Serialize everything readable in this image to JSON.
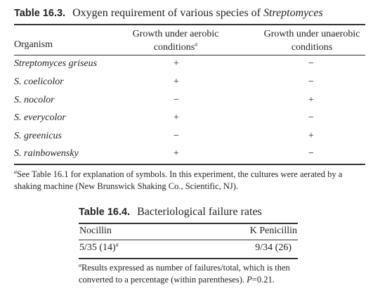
{
  "table1": {
    "number": "Table 16.3.",
    "title_prefix": "Oxygen requirement of various species of ",
    "title_italic": "Streptomyces",
    "headers": {
      "organism": "Organism",
      "aerobic_line1": "Growth under aerobic",
      "aerobic_line2": "conditions",
      "aerobic_mark": "a",
      "anaerobic_line1": "Growth under unaerobic",
      "anaerobic_line2": "conditions"
    },
    "rows": [
      {
        "organism": "Streptomyces griseus",
        "aerobic": "+",
        "anaerobic": "−"
      },
      {
        "organism": "S. coelicolor",
        "aerobic": "+",
        "anaerobic": "−"
      },
      {
        "organism": "S. nocolor",
        "aerobic": "−",
        "anaerobic": "+"
      },
      {
        "organism": "S. everycolor",
        "aerobic": "+",
        "anaerobic": "−"
      },
      {
        "organism": "S. greenicus",
        "aerobic": "−",
        "anaerobic": "+"
      },
      {
        "organism": "S. rainbowensky",
        "aerobic": "+",
        "anaerobic": "−"
      }
    ],
    "footnote_mark": "a",
    "footnote_text": "See Table 16.1 for explanation of symbols. In this experiment, the cultures were aerated by a shaking machine (New Brunswick Shaking Co., Scientific, NJ)."
  },
  "table2": {
    "number": "Table 16.4.",
    "title": "Bacteriological failure rates",
    "headers": {
      "col1": "Nocillin",
      "col2": "K Penicillin"
    },
    "row": {
      "col1": "5/35 (14)",
      "col1_mark": "a",
      "col2": "9/34 (26)"
    },
    "footnote_mark": "a",
    "footnote_text_before": "Results expressed as number of failures/total, which is then converted to a percentage (within parentheses). ",
    "footnote_p": "P",
    "footnote_text_after": "=0.21."
  }
}
